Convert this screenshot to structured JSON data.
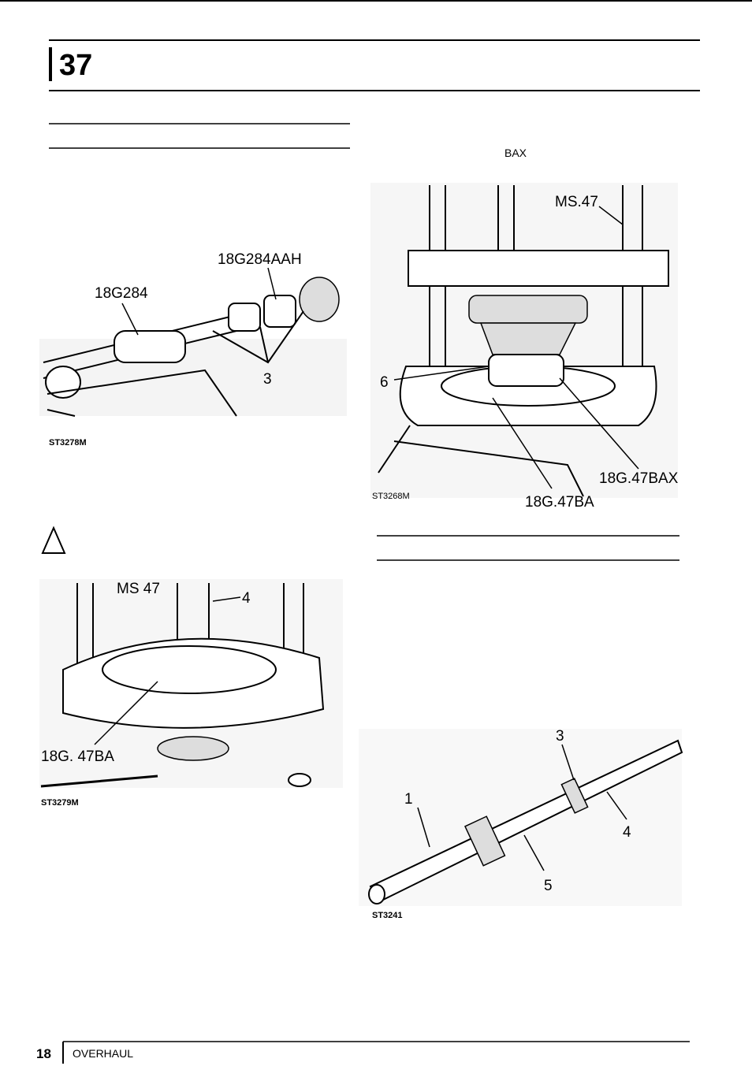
{
  "header": {
    "section": "37"
  },
  "right_column": {
    "note": "BAX"
  },
  "figures": [
    {
      "ref": "ST3278M",
      "labels": [
        "18G284AAH",
        "18G284",
        "3"
      ]
    },
    {
      "ref": "ST3268M",
      "labels": [
        "MS.47",
        "6",
        "18G.47BAX",
        "18G.47BA"
      ]
    },
    {
      "ref": "ST3279M",
      "labels": [
        "MS 47",
        "4",
        "18G. 47BA"
      ]
    },
    {
      "ref": "ST3241",
      "labels": [
        "1",
        "3",
        "4",
        "5"
      ]
    }
  ],
  "footer": {
    "page": "18",
    "title": "OVERHAUL"
  }
}
